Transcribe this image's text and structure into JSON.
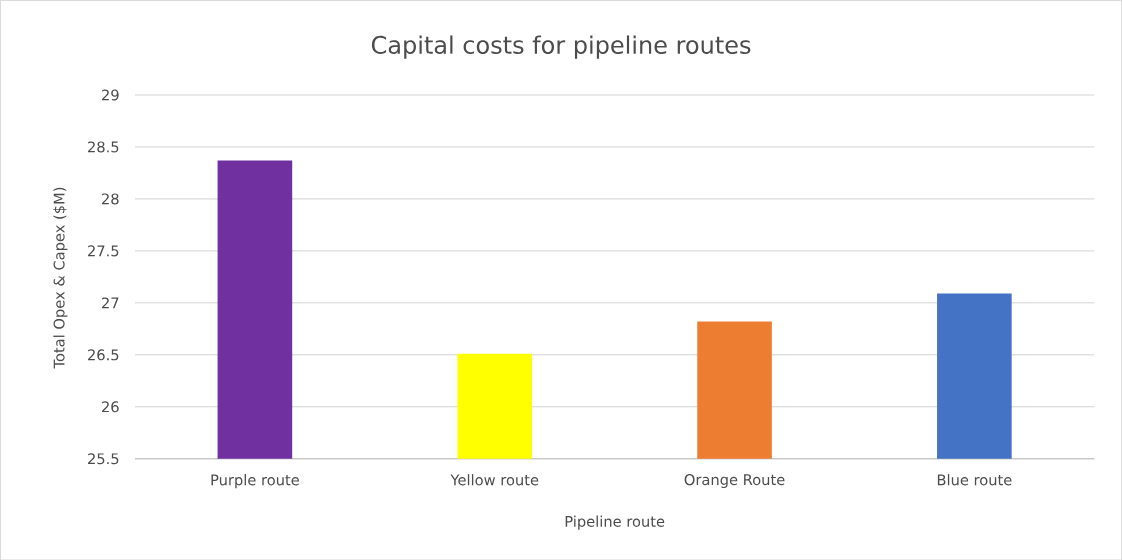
{
  "chart_data": {
    "type": "bar",
    "title": "Capital costs for pipeline routes",
    "xlabel": "Pipeline route",
    "ylabel": "Total Opex & Capex ($M)",
    "categories": [
      "Purple route",
      "Yellow route",
      "Orange Route",
      "Blue route"
    ],
    "values": [
      28.37,
      26.51,
      26.82,
      27.09
    ],
    "colors": [
      "#7030a0",
      "#ffff00",
      "#ed7d31",
      "#4472c4"
    ],
    "ylim": [
      25.5,
      29
    ],
    "yticks": [
      25.5,
      26,
      26.5,
      27,
      27.5,
      28,
      28.5,
      29
    ],
    "grid": "y"
  }
}
